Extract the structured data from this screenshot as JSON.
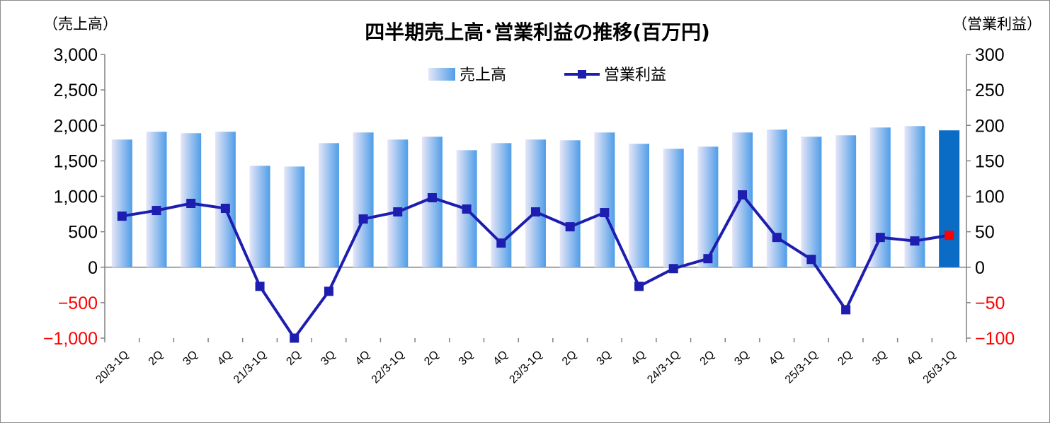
{
  "chart_data": {
    "type": "bar",
    "title": "四半期売上高･営業利益の推移(百万円)",
    "y_left_label": "（売上高）",
    "y_right_label": "（営業利益）",
    "y_left_range": [
      -1000,
      3000
    ],
    "y_right_range": [
      -100,
      300
    ],
    "y_left_ticks": [
      "3,000",
      "2,500",
      "2,000",
      "1,500",
      "1,000",
      "500",
      "0",
      "−500",
      "−1,000"
    ],
    "y_right_ticks": [
      "300",
      "250",
      "200",
      "150",
      "100",
      "50",
      "0",
      "−50",
      "−100"
    ],
    "categories": [
      "20/3-1Q",
      "2Q",
      "3Q",
      "4Q",
      "21/3-1Q",
      "2Q",
      "3Q",
      "4Q",
      "22/3-1Q",
      "2Q",
      "3Q",
      "4Q",
      "23/3-1Q",
      "2Q",
      "3Q",
      "4Q",
      "24/3-1Q",
      "2Q",
      "3Q",
      "4Q",
      "25/3-1Q",
      "2Q",
      "3Q",
      "4Q",
      "26/3-1Q"
    ],
    "series": [
      {
        "name": "売上高",
        "axis": "left",
        "kind": "bar",
        "values": [
          1800,
          1910,
          1890,
          1910,
          1430,
          1420,
          1750,
          1900,
          1800,
          1840,
          1650,
          1750,
          1800,
          1790,
          1900,
          1740,
          1670,
          1700,
          1900,
          1940,
          1840,
          1860,
          1970,
          1990,
          1930
        ]
      },
      {
        "name": "営業利益",
        "axis": "right",
        "kind": "line",
        "values": [
          72,
          80,
          90,
          83,
          -27,
          -100,
          -34,
          68,
          78,
          98,
          82,
          34,
          78,
          57,
          77,
          -27,
          -2,
          12,
          102,
          42,
          11,
          -60,
          42,
          37,
          45
        ]
      }
    ],
    "legend": "top-center",
    "grid": false,
    "colors": {
      "title": "#1a1aa6",
      "bar_gradient_left": "#e6e6f7",
      "bar_gradient_right": "#4f9de8",
      "bar_highlight": "#0a6cc4",
      "line": "#1d1db0",
      "marker_highlight": "#ff0000",
      "negative_tick": "#ff0000",
      "axis": "#808080"
    }
  }
}
